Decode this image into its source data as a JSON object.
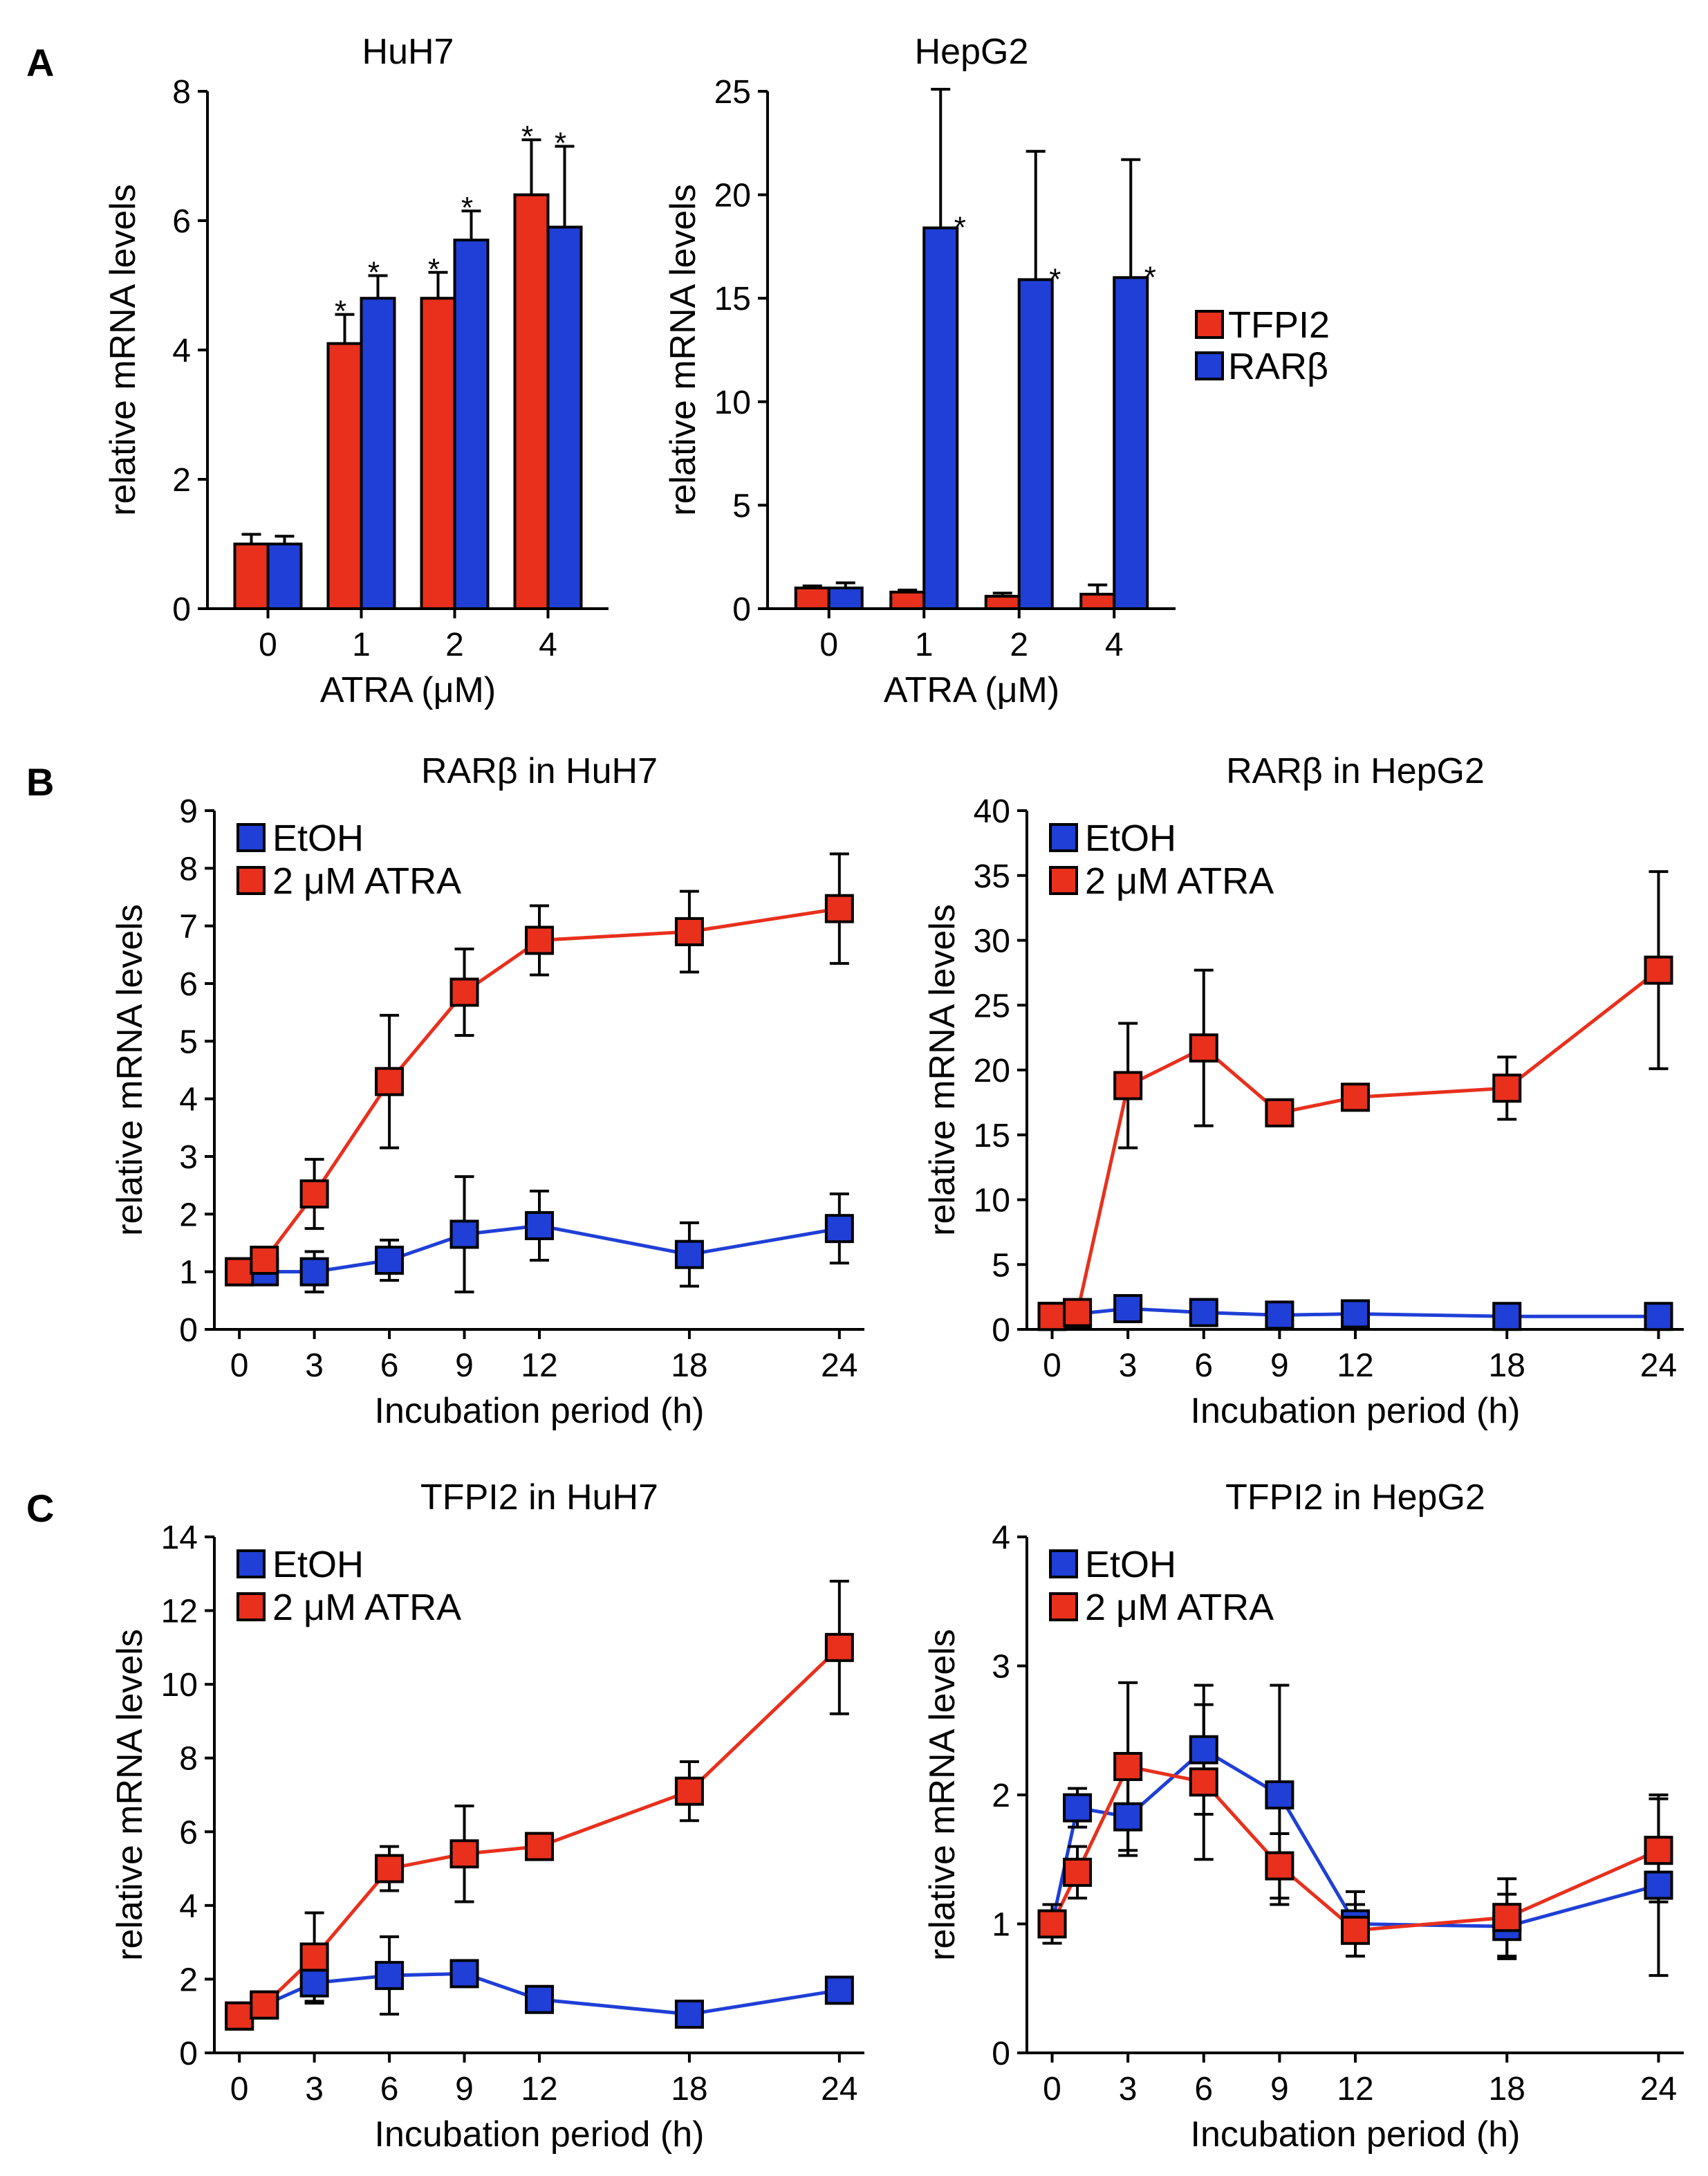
{
  "figure": {
    "panels": [
      "A",
      "B",
      "C"
    ]
  },
  "colors": {
    "red": "#e8301d",
    "blue": "#1f3fd6",
    "axis": "#000000"
  },
  "chart_data": [
    {
      "id": "A1",
      "type": "bar",
      "title": "HuH7",
      "xlabel": "ATRA  (μM)",
      "ylabel": "relative  mRNA  levels",
      "categories": [
        "0",
        "1",
        "2",
        "4"
      ],
      "ylim": [
        0,
        8
      ],
      "yticks": [
        0,
        2,
        4,
        6,
        8
      ],
      "series": [
        {
          "name": "TFPI2",
          "color": "red",
          "values": [
            1.0,
            4.1,
            4.8,
            6.4
          ],
          "errors": [
            0.15,
            0.45,
            0.4,
            0.85
          ],
          "stars": [
            false,
            true,
            true,
            true
          ]
        },
        {
          "name": "RARβ",
          "color": "blue",
          "values": [
            1.0,
            4.8,
            5.7,
            5.9
          ],
          "errors": [
            0.12,
            0.35,
            0.45,
            1.25
          ],
          "stars": [
            false,
            true,
            true,
            true
          ]
        }
      ]
    },
    {
      "id": "A2",
      "type": "bar",
      "title": "HepG2",
      "xlabel": "ATRA  (μM)",
      "ylabel": "relative  mRNA  levels",
      "categories": [
        "0",
        "1",
        "2",
        "4"
      ],
      "ylim": [
        0,
        25
      ],
      "yticks": [
        0,
        5,
        10,
        15,
        20,
        25
      ],
      "legend": [
        "TFPI2",
        "RARβ"
      ],
      "series": [
        {
          "name": "TFPI2",
          "color": "red",
          "values": [
            1.0,
            0.8,
            0.6,
            0.7
          ],
          "errors": [
            0.1,
            0.1,
            0.15,
            0.45
          ],
          "stars": [
            false,
            false,
            false,
            false
          ]
        },
        {
          "name": "RARβ",
          "color": "blue",
          "values": [
            1.0,
            18.4,
            15.9,
            16.0
          ],
          "errors": [
            0.25,
            6.7,
            6.2,
            5.7
          ],
          "stars": [
            false,
            true,
            true,
            true
          ]
        }
      ]
    },
    {
      "id": "B1",
      "type": "line",
      "title": "RARβ  in HuH7",
      "xlabel": "Incubation period (h)",
      "ylabel": "relative  mRNA  levels",
      "x": [
        0,
        1,
        3,
        6,
        9,
        12,
        18,
        24
      ],
      "xticks": [
        0,
        3,
        6,
        9,
        12,
        18,
        24
      ],
      "xlim": [
        -1,
        25
      ],
      "ylim": [
        0,
        9
      ],
      "yticks": [
        0,
        1,
        2,
        3,
        4,
        5,
        6,
        7,
        8,
        9
      ],
      "series": [
        {
          "name": "EtOH",
          "color": "blue",
          "values": [
            1.0,
            1.0,
            1.0,
            1.2,
            1.65,
            1.8,
            1.3,
            1.75
          ],
          "errors": [
            0.1,
            0.1,
            0.35,
            0.35,
            1.0,
            0.6,
            0.55,
            0.6
          ]
        },
        {
          "name": "2 μM ATRA",
          "color": "red",
          "values": [
            1.0,
            1.2,
            2.35,
            4.3,
            5.85,
            6.75,
            6.9,
            7.3
          ],
          "errors": [
            0.1,
            0.2,
            0.6,
            1.15,
            0.75,
            0.6,
            0.7,
            0.95
          ]
        }
      ]
    },
    {
      "id": "B2",
      "type": "line",
      "title": "RARβ  in HepG2",
      "xlabel": "Incubation period (h)",
      "ylabel": "relative  mRNA  levels",
      "x": [
        0,
        1,
        3,
        6,
        9,
        12,
        18,
        24
      ],
      "xticks": [
        0,
        3,
        6,
        9,
        12,
        18,
        24
      ],
      "xlim": [
        -1,
        25
      ],
      "ylim": [
        0,
        40
      ],
      "yticks": [
        0,
        5,
        10,
        15,
        20,
        25,
        30,
        35,
        40
      ],
      "series": [
        {
          "name": "EtOH",
          "color": "blue",
          "values": [
            1.0,
            1.2,
            1.6,
            1.3,
            1.1,
            1.2,
            1.0,
            1.0
          ],
          "errors": [
            0.1,
            0.1,
            0.3,
            0.3,
            0.2,
            0.3,
            0.2,
            0.2
          ]
        },
        {
          "name": "2 μM ATRA",
          "color": "red",
          "values": [
            1.0,
            1.3,
            18.8,
            21.7,
            16.7,
            17.9,
            18.6,
            27.7
          ],
          "errors": [
            0.1,
            0.2,
            4.8,
            6.0,
            0.5,
            0.5,
            2.4,
            7.6
          ]
        }
      ]
    },
    {
      "id": "C1",
      "type": "line",
      "title": "TFPI2  in HuH7",
      "xlabel": "Incubation period (h)",
      "ylabel": "relative  mRNA  levels",
      "x": [
        0,
        1,
        3,
        6,
        9,
        12,
        18,
        24
      ],
      "xticks": [
        0,
        3,
        6,
        9,
        12,
        18,
        24
      ],
      "xlim": [
        -1,
        25
      ],
      "ylim": [
        0,
        14
      ],
      "yticks": [
        0,
        2,
        4,
        6,
        8,
        10,
        12,
        14
      ],
      "series": [
        {
          "name": "EtOH",
          "color": "blue",
          "values": [
            1.0,
            1.3,
            1.9,
            2.1,
            2.15,
            1.45,
            1.05,
            1.7
          ],
          "errors": [
            0.1,
            0.15,
            0.55,
            1.05,
            0.35,
            0.2,
            0.2,
            0.35
          ]
        },
        {
          "name": "2 μM ATRA",
          "color": "red",
          "values": [
            1.0,
            1.3,
            2.6,
            5.0,
            5.4,
            5.6,
            7.1,
            11.0
          ],
          "errors": [
            0.1,
            0.2,
            1.2,
            0.6,
            1.3,
            0.3,
            0.8,
            1.8
          ]
        }
      ]
    },
    {
      "id": "C2",
      "type": "line",
      "title": "TFPI2  in HepG2",
      "xlabel": "Incubation period (h)",
      "ylabel": "relative  mRNA  levels",
      "x": [
        0,
        1,
        3,
        6,
        9,
        12,
        18,
        24
      ],
      "xticks": [
        0,
        3,
        6,
        9,
        12,
        18,
        24
      ],
      "xlim": [
        -1,
        25
      ],
      "ylim": [
        0,
        4
      ],
      "yticks": [
        0,
        1,
        2,
        3,
        4
      ],
      "series": [
        {
          "name": "EtOH",
          "color": "blue",
          "values": [
            1.0,
            1.9,
            1.83,
            2.35,
            2.0,
            1.0,
            0.98,
            1.3
          ],
          "errors": [
            0.15,
            0.15,
            0.3,
            0.5,
            0.85,
            0.25,
            0.25,
            0.7
          ]
        },
        {
          "name": "2 μM ATRA",
          "color": "red",
          "values": [
            1.0,
            1.4,
            2.22,
            2.1,
            1.45,
            0.95,
            1.05,
            1.57
          ],
          "errors": [
            0.15,
            0.2,
            0.65,
            0.6,
            0.25,
            0.2,
            0.3,
            0.4
          ]
        }
      ]
    }
  ]
}
